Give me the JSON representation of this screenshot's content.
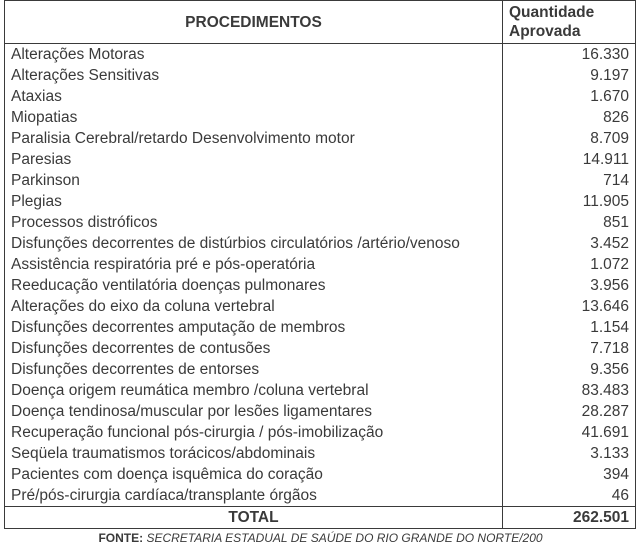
{
  "table": {
    "columns": {
      "proc": "PROCEDIMENTOS",
      "qty_line1": "Quantidade",
      "qty_line2": "Aprovada"
    },
    "col_widths": {
      "proc": 510,
      "qty": 120
    },
    "font_size": 15.5,
    "header_font_weight": "bold",
    "text_color": "#3a3a3a",
    "border_color": "#3a3a3a",
    "background_color": "#ffffff",
    "rows": [
      {
        "label": "Alterações Motoras",
        "qty": "16.330"
      },
      {
        "label": "Alterações Sensitivas",
        "qty": "9.197"
      },
      {
        "label": "Ataxias",
        "qty": "1.670"
      },
      {
        "label": "Miopatias",
        "qty": "826"
      },
      {
        "label": "Paralisia Cerebral/retardo Desenvolvimento motor",
        "qty": "8.709"
      },
      {
        "label": "Paresias",
        "qty": "14.911"
      },
      {
        "label": "Parkinson",
        "qty": "714"
      },
      {
        "label": "Plegias",
        "qty": "11.905"
      },
      {
        "label": "Processos distróficos",
        "qty": "851"
      },
      {
        "label": "Disfunções decorrentes de distúrbios circulatórios /artério/venoso",
        "qty": "3.452"
      },
      {
        "label": "Assistência respiratória pré e pós-operatória",
        "qty": "1.072"
      },
      {
        "label": "Reeducação ventilatória doenças pulmonares",
        "qty": "3.956"
      },
      {
        "label": "Alterações do eixo da coluna vertebral",
        "qty": "13.646"
      },
      {
        "label": "Disfunções decorrentes amputação de membros",
        "qty": "1.154"
      },
      {
        "label": "Disfunções decorrentes de contusões",
        "qty": "7.718"
      },
      {
        "label": "Disfunções decorrentes de entorses",
        "qty": "9.356"
      },
      {
        "label": "Doença origem reumática membro /coluna vertebral",
        "qty": "83.483"
      },
      {
        "label": "Doença tendinosa/muscular por lesões ligamentares",
        "qty": "28.287"
      },
      {
        "label": "Recuperação funcional pós-cirurgia / pós-imobilização",
        "qty": "41.691"
      },
      {
        "label": "Seqüela traumatismos torácicos/abdominais",
        "qty": "3.133"
      },
      {
        "label": "Pacientes com doença isquêmica do coração",
        "qty": "394"
      },
      {
        "label": "Pré/pós-cirurgia cardíaca/transplante órgãos",
        "qty": "46"
      }
    ],
    "total": {
      "label": "TOTAL",
      "qty": "262.501"
    }
  },
  "source": {
    "prefix": "FONTE:",
    "text": " SECRETARIA ESTADUAL DE SAÚDE DO RIO GRANDE DO NORTE/200"
  }
}
